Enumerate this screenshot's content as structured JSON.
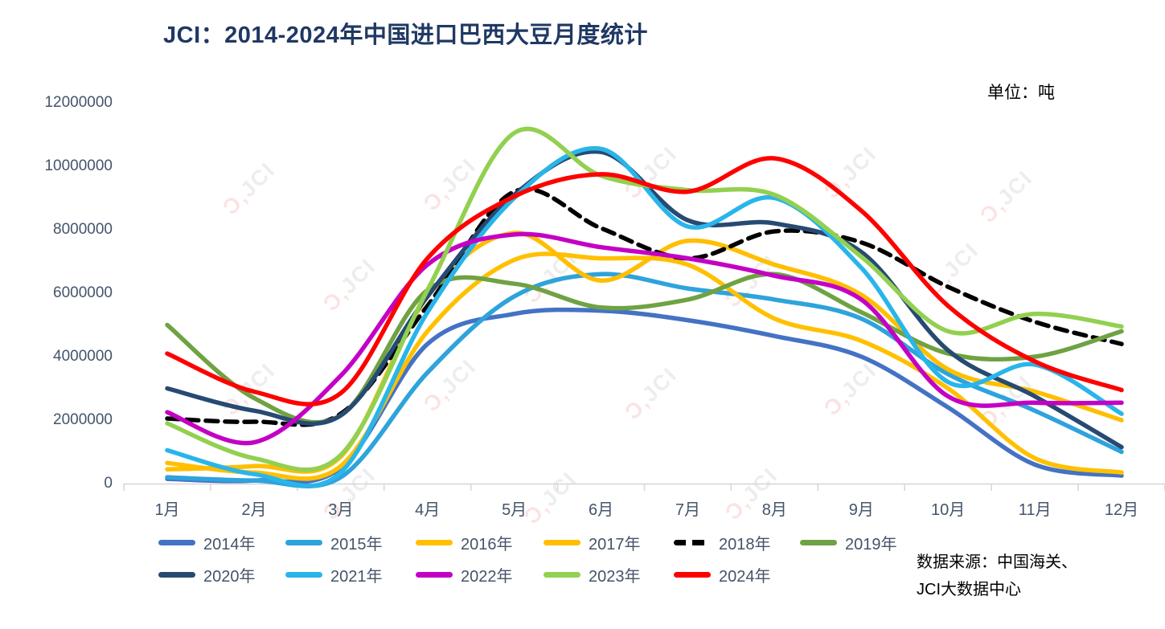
{
  "title": "JCI：2014-2024年中国进口巴西大豆月度统计",
  "unit_label": "单位：吨",
  "source_note": {
    "line1": "数据来源：中国海关、",
    "line2": "JCI大数据中心"
  },
  "watermark": {
    "mark": "Ɔ‚",
    "text": "JCI"
  },
  "chart_data": {
    "type": "line",
    "smooth": true,
    "grid": false,
    "legend_position": "bottom",
    "title": "JCI：2014-2024年中国进口巴西大豆月度统计",
    "ylabel": "吨",
    "ylim": [
      0,
      12000000
    ],
    "y_ticks": [
      "0",
      "2000000",
      "4000000",
      "6000000",
      "8000000",
      "10000000",
      "12000000"
    ],
    "categories": [
      "1月",
      "2月",
      "3月",
      "4月",
      "5月",
      "6月",
      "7月",
      "8月",
      "9月",
      "10月",
      "11月",
      "12月"
    ],
    "series": [
      {
        "name": "2014年",
        "color": "#4472C4",
        "dashed": false,
        "values": [
          150000,
          100000,
          500000,
          4400000,
          5350000,
          5450000,
          5150000,
          4650000,
          4000000,
          2400000,
          600000,
          250000
        ]
      },
      {
        "name": "2015年",
        "color": "#2EA3DC",
        "dashed": false,
        "values": [
          200000,
          100000,
          200000,
          3500000,
          5900000,
          6600000,
          6150000,
          5800000,
          5200000,
          3450000,
          2300000,
          1000000
        ]
      },
      {
        "name": "2016年",
        "color": "#FFC000",
        "dashed": false,
        "values": [
          650000,
          350000,
          550000,
          4800000,
          7050000,
          7100000,
          6900000,
          5200000,
          4500000,
          3000000,
          800000,
          350000
        ]
      },
      {
        "name": "2017年",
        "color": "#FFBE00",
        "dashed": false,
        "values": [
          450000,
          550000,
          850000,
          5900000,
          7900000,
          6400000,
          7650000,
          6900000,
          5950000,
          3600000,
          2900000,
          2000000
        ]
      },
      {
        "name": "2018年",
        "color": "#000000",
        "dashed": true,
        "values": [
          2050000,
          1950000,
          2200000,
          5600000,
          9200000,
          8050000,
          7100000,
          7950000,
          7600000,
          6200000,
          5100000,
          4400000
        ]
      },
      {
        "name": "2019年",
        "color": "#6FA243",
        "dashed": false,
        "values": [
          5000000,
          2700000,
          2150000,
          6100000,
          6300000,
          5550000,
          5800000,
          6600000,
          5400000,
          4100000,
          4000000,
          4800000
        ]
      },
      {
        "name": "2020年",
        "color": "#274A73",
        "dashed": false,
        "values": [
          3000000,
          2300000,
          2150000,
          5900000,
          9100000,
          10450000,
          8300000,
          8200000,
          7300000,
          4200000,
          2750000,
          1150000
        ]
      },
      {
        "name": "2021年",
        "color": "#29B5EA",
        "dashed": false,
        "values": [
          1050000,
          300000,
          350000,
          5400000,
          9000000,
          10550000,
          8100000,
          9000000,
          6800000,
          3200000,
          3750000,
          2200000
        ]
      },
      {
        "name": "2022年",
        "color": "#C400C4",
        "dashed": false,
        "values": [
          2250000,
          1300000,
          3400000,
          6900000,
          7850000,
          7450000,
          7100000,
          6550000,
          5800000,
          2750000,
          2550000,
          2550000
        ]
      },
      {
        "name": "2023年",
        "color": "#92D050",
        "dashed": false,
        "values": [
          1900000,
          800000,
          900000,
          6100000,
          11050000,
          9700000,
          9250000,
          9100000,
          7150000,
          4800000,
          5350000,
          4950000
        ]
      },
      {
        "name": "2024年",
        "color": "#FF0000",
        "dashed": false,
        "values": [
          4100000,
          2900000,
          2850000,
          7100000,
          9050000,
          9750000,
          9200000,
          10250000,
          8600000,
          5600000,
          3850000,
          2950000
        ]
      }
    ]
  }
}
